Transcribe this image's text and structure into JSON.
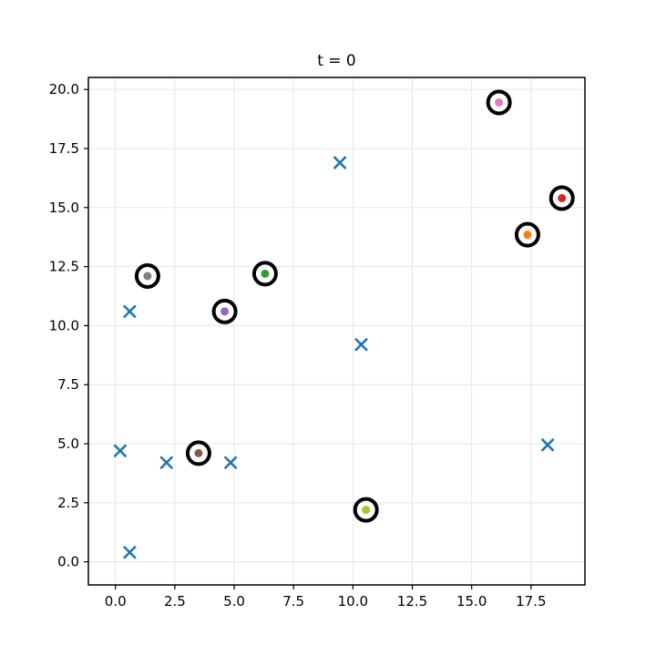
{
  "chart_data": {
    "type": "scatter",
    "title": "t = 0",
    "xlabel": "",
    "ylabel": "",
    "xlim": [
      -1.14,
      19.77
    ],
    "ylim": [
      -0.98,
      20.51
    ],
    "xticks": {
      "values": [
        0,
        2.5,
        5,
        7.5,
        10,
        12.5,
        15,
        17.5
      ],
      "labels": [
        "0.0",
        "2.5",
        "5.0",
        "7.5",
        "10.0",
        "12.5",
        "15.0",
        "17.5"
      ]
    },
    "yticks": {
      "values": [
        0,
        2.5,
        5,
        7.5,
        10,
        12.5,
        15,
        17.5,
        20
      ],
      "labels": [
        "0.0",
        "2.5",
        "5.0",
        "7.5",
        "10.0",
        "12.5",
        "15.0",
        "17.5",
        "20.0"
      ]
    },
    "grid": true,
    "grid_color": "#e6e6e6",
    "spine_color": "#000000",
    "legend": "none",
    "series": [
      {
        "name": "unassigned-points",
        "marker": "x",
        "color": "#1f77b4",
        "points": [
          {
            "x": 0.6,
            "y": 10.6
          },
          {
            "x": 9.45,
            "y": 16.9
          },
          {
            "x": 10.35,
            "y": 9.2
          },
          {
            "x": 0.2,
            "y": 4.7
          },
          {
            "x": 2.15,
            "y": 4.2
          },
          {
            "x": 4.85,
            "y": 4.2
          },
          {
            "x": 0.6,
            "y": 0.4
          },
          {
            "x": 18.2,
            "y": 4.95
          }
        ]
      },
      {
        "name": "highlighted-points",
        "marker": "circled-dot",
        "ring_color": "#000000",
        "points": [
          {
            "x": 17.35,
            "y": 13.85,
            "color": "#ff7f0e"
          },
          {
            "x": 6.3,
            "y": 12.2,
            "color": "#2ca02c"
          },
          {
            "x": 18.8,
            "y": 15.4,
            "color": "#d62728"
          },
          {
            "x": 4.6,
            "y": 10.6,
            "color": "#9467bd"
          },
          {
            "x": 3.5,
            "y": 4.6,
            "color": "#8c564b"
          },
          {
            "x": 16.15,
            "y": 19.45,
            "color": "#e377c2"
          },
          {
            "x": 1.35,
            "y": 12.1,
            "color": "#7f7f7f"
          },
          {
            "x": 10.55,
            "y": 2.2,
            "color": "#bcbd22"
          }
        ]
      }
    ]
  }
}
